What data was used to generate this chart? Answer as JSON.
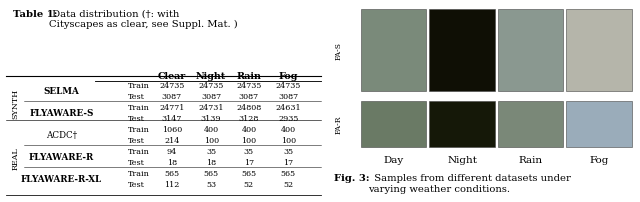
{
  "table_title_bold": "Table 1:",
  "table_title_rest": " Data distribution (†: with\nCityscapes as clear, see Suppl. Mat. )",
  "col_headers": [
    "Clear",
    "Night",
    "Rain",
    "Fog"
  ],
  "rows": [
    {
      "group": "SYNTH",
      "name": "SELMA",
      "bold": true,
      "train": [
        24735,
        24735,
        24735,
        24735
      ],
      "test": [
        3087,
        3087,
        3087,
        3087
      ]
    },
    {
      "group": "SYNTH",
      "name": "FLYAWARE-S",
      "bold": true,
      "train": [
        24771,
        24731,
        24808,
        24631
      ],
      "test": [
        3147,
        3139,
        3128,
        2935
      ]
    },
    {
      "group": "REAL",
      "name": "ACDC†",
      "bold": false,
      "train": [
        1060,
        400,
        400,
        400
      ],
      "test": [
        214,
        100,
        100,
        100
      ]
    },
    {
      "group": "REAL",
      "name": "FLYAWARE-R",
      "bold": true,
      "train": [
        94,
        35,
        35,
        35
      ],
      "test": [
        18,
        18,
        17,
        17
      ]
    },
    {
      "group": "REAL",
      "name": "FLYAWARE-R-XL",
      "bold": true,
      "train": [
        565,
        565,
        565,
        565
      ],
      "test": [
        112,
        53,
        52,
        52
      ]
    }
  ],
  "fig3_caption_bold": "Fig. 3:",
  "fig3_caption_rest": "  Samples from different datasets under\nvarying weather conditions.",
  "weather_labels": [
    "Day",
    "Night",
    "Rain",
    "Fog"
  ],
  "row_labels": [
    "FA-S",
    "FA-R"
  ],
  "colors_row1": [
    "#7a8a7a",
    "#0f0f05",
    "#8a9890",
    "#b5b5aa"
  ],
  "colors_row2": [
    "#6a7a65",
    "#151808",
    "#7a8878",
    "#9aacba"
  ]
}
